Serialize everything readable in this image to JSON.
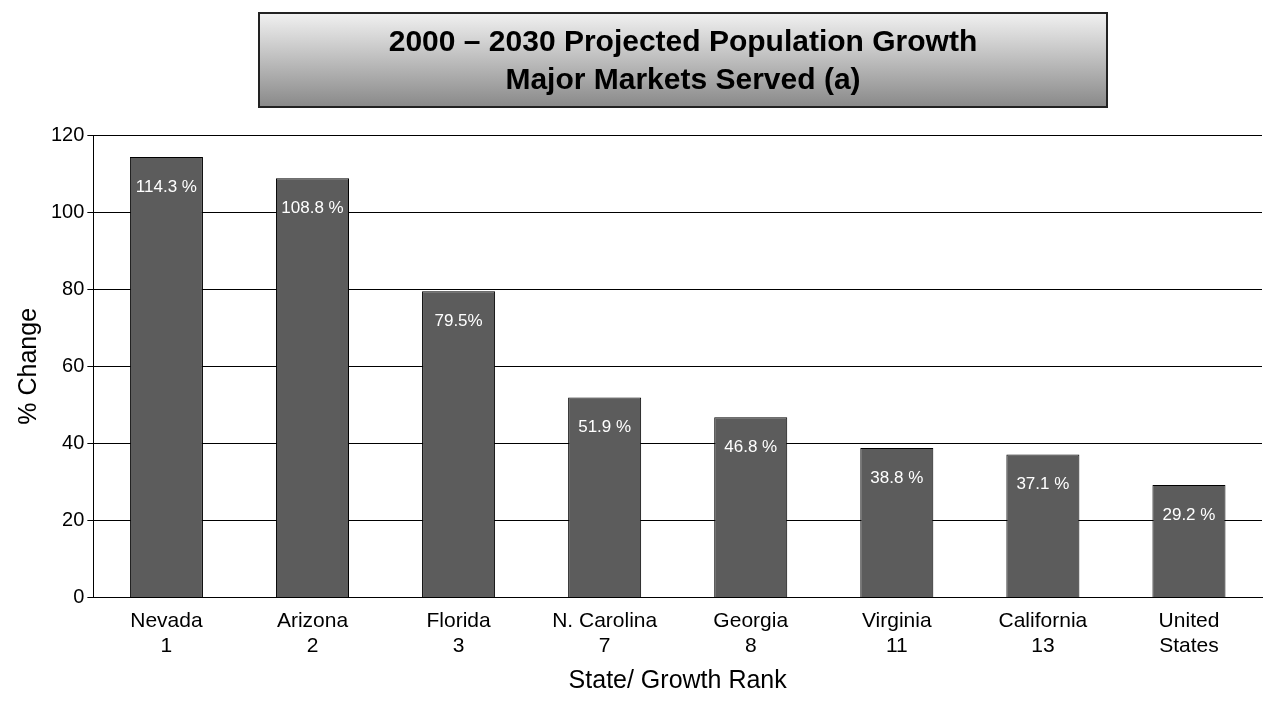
{
  "chart_data": {
    "type": "bar",
    "title": "2000 – 2030 Projected Population Growth\nMajor Markets Served (a)",
    "categories": [
      "Nevada\n1",
      "Arizona\n2",
      "Florida\n3",
      "N. Carolina\n7",
      "Georgia\n8",
      "Virginia\n11",
      "California\n13",
      "United\nStates"
    ],
    "values": [
      114.3,
      108.8,
      79.5,
      51.9,
      46.8,
      38.8,
      37.1,
      29.2
    ],
    "value_labels": [
      "114.3 %",
      "108.8 %",
      "79.5%",
      "51.9 %",
      "46.8 %",
      "38.8 %",
      "37.1 %",
      "29.2 %"
    ],
    "color": "#5c5c5c",
    "xlabel": "State/ Growth Rank",
    "ylabel": "% Change",
    "ylim": [
      0,
      120
    ],
    "yticks": [
      0,
      20,
      40,
      60,
      80,
      100,
      120
    ],
    "grid": "y",
    "legend": false
  }
}
